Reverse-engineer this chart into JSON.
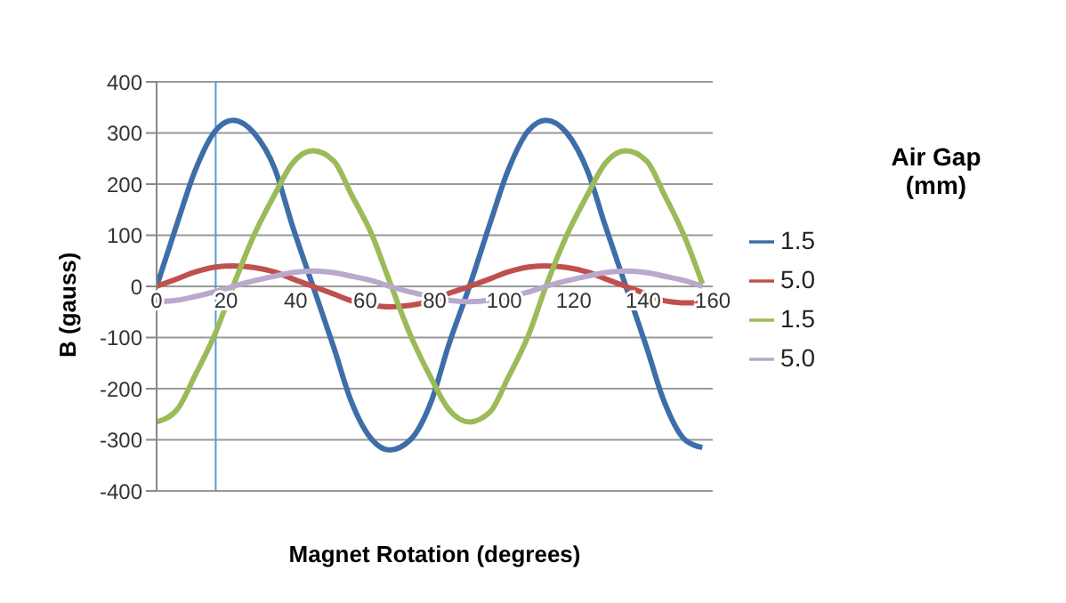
{
  "chart_data": {
    "type": "line",
    "xlabel": "Magnet Rotation (degrees)",
    "ylabel": "B (gauss)",
    "legend_title": "Air Gap\n(mm)",
    "x": [
      0,
      6,
      11,
      17,
      22,
      28,
      34,
      39,
      45,
      51,
      56,
      62,
      67,
      73,
      79,
      84,
      90,
      96,
      101,
      107,
      112,
      118,
      124,
      129,
      135,
      141,
      146,
      152,
      157
    ],
    "series": [
      {
        "name": "1.5",
        "color": "#3e6ea8",
        "values": [
          0,
          125,
          225,
          305,
          325,
          300,
          230,
          120,
          0,
          -120,
          -225,
          -300,
          -320,
          -300,
          -225,
          -115,
          0,
          125,
          225,
          305,
          325,
          300,
          225,
          120,
          0,
          -120,
          -225,
          -300,
          -315
        ]
      },
      {
        "name": "5.0",
        "color": "#c0504d",
        "values": [
          0,
          15,
          28,
          38,
          40,
          37,
          28,
          15,
          0,
          -15,
          -28,
          -37,
          -40,
          -37,
          -28,
          -14,
          0,
          15,
          28,
          38,
          40,
          37,
          28,
          15,
          0,
          -15,
          -28,
          -32,
          -32
        ]
      },
      {
        "name": "1.5",
        "color": "#9bbb59",
        "values": [
          -265,
          -240,
          -175,
          -90,
          0,
          100,
          180,
          240,
          265,
          245,
          180,
          100,
          10,
          -95,
          -180,
          -240,
          -265,
          -245,
          -180,
          -95,
          0,
          100,
          180,
          240,
          265,
          245,
          180,
          95,
          5
        ]
      },
      {
        "name": "5.0",
        "color": "#b9a9cc",
        "values": [
          -30,
          -27,
          -20,
          -10,
          0,
          11,
          20,
          27,
          30,
          27,
          20,
          11,
          0,
          -11,
          -20,
          -27,
          -30,
          -27,
          -20,
          -11,
          0,
          11,
          20,
          27,
          30,
          27,
          20,
          11,
          0
        ]
      }
    ],
    "xlim": [
      0,
      160
    ],
    "xticks": [
      0,
      20,
      40,
      60,
      80,
      100,
      120,
      140,
      160
    ],
    "ylim": [
      -400,
      400
    ],
    "yticks": [
      -400,
      -300,
      -200,
      -100,
      0,
      100,
      200,
      300,
      400
    ],
    "ref_lines": [
      {
        "axis": "x",
        "value": 17,
        "color": "#5b9bd5"
      }
    ],
    "grid": "y",
    "legend": "right",
    "marker": "none",
    "line_style": "solid"
  }
}
